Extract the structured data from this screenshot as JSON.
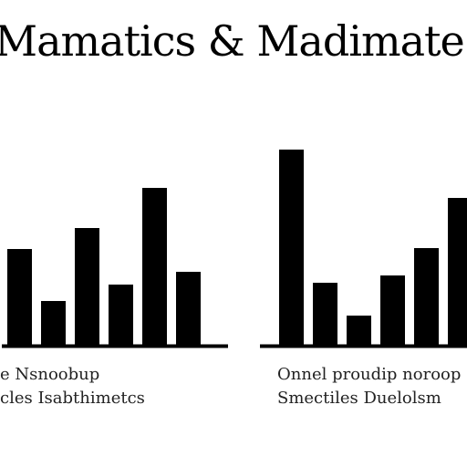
{
  "title": "Mamatics & Madimate",
  "captions": {
    "left_line1": "e Nsnoobup",
    "left_line2": "cles Isabthimetcs",
    "right_line1": "Onnel proudip noroop",
    "right_line2": "Smectiles Duelolsm"
  },
  "colors": {
    "bar": "#000000",
    "axis": "#000000"
  },
  "chart_data": [
    {
      "type": "bar",
      "categories": [
        "",
        "",
        "",
        "",
        "",
        ""
      ],
      "values": [
        105,
        48,
        128,
        66,
        172,
        80
      ],
      "ylim": [
        0,
        220
      ],
      "grid": false,
      "legend": "none"
    },
    {
      "type": "bar",
      "categories": [
        "",
        "",
        "",
        "",
        "",
        ""
      ],
      "values": [
        214,
        68,
        32,
        76,
        106,
        161
      ],
      "ylim": [
        0,
        220
      ],
      "grid": false,
      "legend": "none"
    }
  ]
}
